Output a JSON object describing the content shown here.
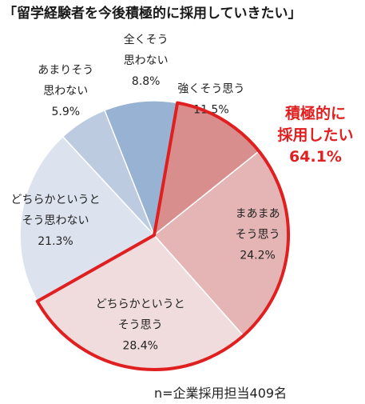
{
  "title": "「留学経験者を今後積極的に採用していきたい」",
  "note": "n=企業採用担当409名",
  "callout": {
    "lines": [
      "積極的に",
      "採用したい"
    ],
    "value": "64.1%",
    "color": "#e02020"
  },
  "chart_data": {
    "type": "pie",
    "slices": [
      {
        "label_lines": [
          "強くそう思う"
        ],
        "value": 11.5,
        "value_text": "11.5%",
        "color": "#d98e8e"
      },
      {
        "label_lines": [
          "まあまあ",
          "そう思う"
        ],
        "value": 24.2,
        "value_text": "24.2%",
        "color": "#e5b5b5"
      },
      {
        "label_lines": [
          "どちらかというと",
          "そう思う"
        ],
        "value": 28.4,
        "value_text": "28.4%",
        "color": "#f0dcdc"
      },
      {
        "label_lines": [
          "どちらかというと",
          "そう思わない"
        ],
        "value": 21.3,
        "value_text": "21.3%",
        "color": "#dde3ee"
      },
      {
        "label_lines": [
          "あまりそう",
          "思わない"
        ],
        "value": 5.9,
        "value_text": "5.9%",
        "color": "#bccbe0"
      },
      {
        "label_lines": [
          "全くそう",
          "思わない"
        ],
        "value": 8.8,
        "value_text": "8.8%",
        "color": "#97b2d3"
      }
    ]
  }
}
